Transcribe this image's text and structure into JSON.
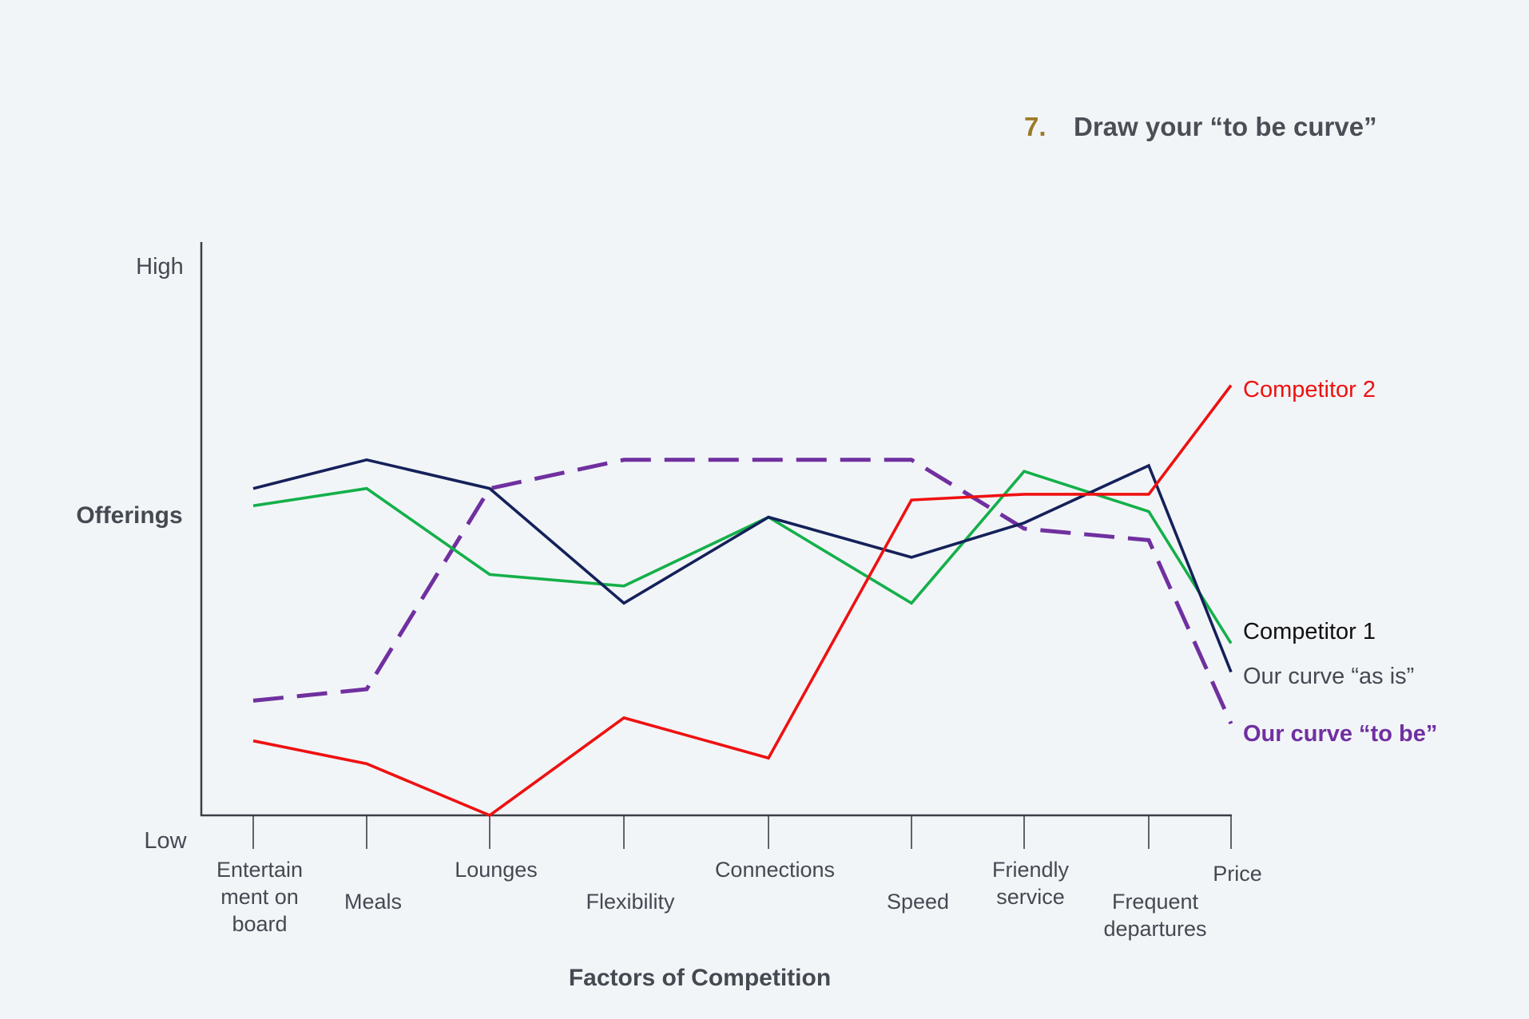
{
  "heading": {
    "number": "7.",
    "text": "Draw your “to be curve”"
  },
  "colors": {
    "background": "#f2f5f8",
    "heading_number": "#9c7a2a",
    "heading_text": "#4a4f57",
    "axis": "#3a3f46",
    "competitor_1": "#14215a",
    "competitor_2": "#ee1111",
    "as_is": "#14b04a",
    "to_be": "#7030a0"
  },
  "chart_data": {
    "type": "line",
    "title": "Draw your “to be curve”",
    "xlabel": "Factors of Competition",
    "ylabel": "Offerings",
    "ytick_labels": {
      "high": "High",
      "low": "Low"
    },
    "ylim": [
      0,
      10
    ],
    "grid": false,
    "categories": [
      "Entertain ment on board",
      "Meals",
      "Lounges",
      "Flexibility",
      "Connections",
      "Speed",
      "Friendly service",
      "Frequent departures",
      "Price"
    ],
    "category_lines": [
      [
        "Entertain",
        "ment on",
        "board"
      ],
      [
        "Meals"
      ],
      [
        "Lounges"
      ],
      [
        "Flexibility"
      ],
      [
        "Connections"
      ],
      [
        "Speed"
      ],
      [
        "Friendly",
        "service"
      ],
      [
        "Frequent",
        "departures"
      ],
      [
        "Price"
      ]
    ],
    "series": [
      {
        "name": "Competitor 1",
        "color": "#14215a",
        "style": "solid",
        "values": [
          5.7,
          6.2,
          5.7,
          3.7,
          5.2,
          4.5,
          5.1,
          6.1,
          2.5
        ]
      },
      {
        "name": "Competitor 2",
        "color": "#ee1111",
        "style": "solid",
        "values": [
          1.3,
          0.9,
          0.0,
          1.7,
          1.0,
          5.5,
          5.6,
          5.6,
          7.5
        ]
      },
      {
        "name": "Our curve “as is”",
        "color": "#14b04a",
        "style": "solid",
        "values": [
          5.4,
          5.7,
          4.2,
          4.0,
          5.2,
          3.7,
          6.0,
          5.3,
          3.0
        ]
      },
      {
        "name": "Our curve “to be”",
        "color": "#7030a0",
        "style": "dashed",
        "values": [
          2.0,
          2.2,
          5.7,
          6.2,
          6.2,
          6.2,
          5.0,
          4.8,
          1.6
        ]
      }
    ]
  }
}
